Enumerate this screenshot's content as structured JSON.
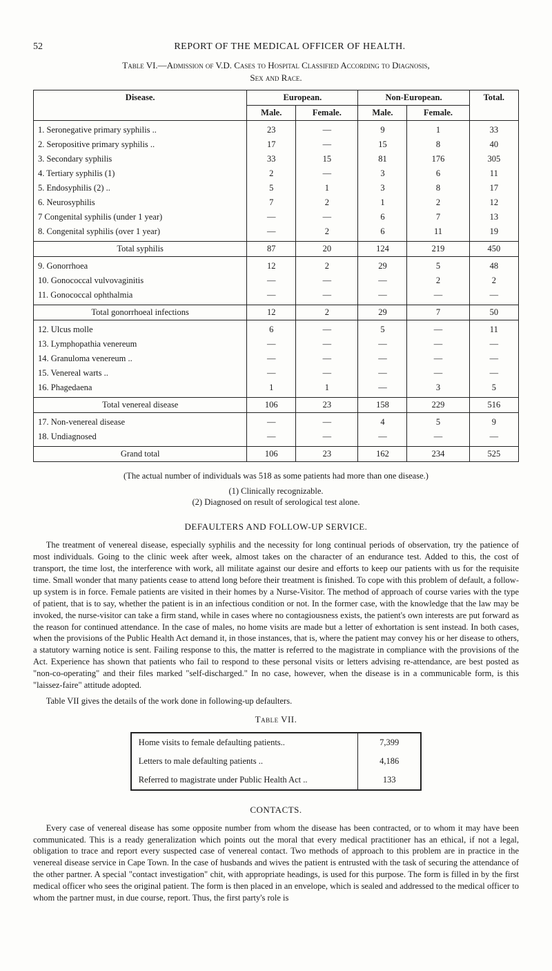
{
  "page_number": "52",
  "running_head": "REPORT OF THE MEDICAL OFFICER OF HEALTH.",
  "table6": {
    "caption_line1": "Table VI.—Admission of V.D. Cases to Hospital Classified According to Diagnosis,",
    "caption_line2": "Sex and Race.",
    "head_disease": "Disease.",
    "head_european": "European.",
    "head_noneuropean": "Non-European.",
    "head_total": "Total.",
    "head_male": "Male.",
    "head_female": "Female.",
    "group1": [
      {
        "label": "1. Seronegative primary syphilis ..",
        "em": "23",
        "ef": "—",
        "nm": "9",
        "nf": "1",
        "t": "33"
      },
      {
        "label": "2. Seropositive primary syphilis ..",
        "em": "17",
        "ef": "—",
        "nm": "15",
        "nf": "8",
        "t": "40"
      },
      {
        "label": "3. Secondary syphilis",
        "em": "33",
        "ef": "15",
        "nm": "81",
        "nf": "176",
        "t": "305"
      },
      {
        "label": "4. Tertiary syphilis (1)",
        "em": "2",
        "ef": "—",
        "nm": "3",
        "nf": "6",
        "t": "11"
      },
      {
        "label": "5. Endosyphilis (2) ..",
        "em": "5",
        "ef": "1",
        "nm": "3",
        "nf": "8",
        "t": "17"
      },
      {
        "label": "6. Neurosyphilis",
        "em": "7",
        "ef": "2",
        "nm": "1",
        "nf": "2",
        "t": "12"
      },
      {
        "label": "7 Congenital syphilis (under 1 year)",
        "em": "—",
        "ef": "—",
        "nm": "6",
        "nf": "7",
        "t": "13"
      },
      {
        "label": "8. Congenital syphilis (over 1 year)",
        "em": "—",
        "ef": "2",
        "nm": "6",
        "nf": "11",
        "t": "19"
      }
    ],
    "sub1": {
      "label": "Total syphilis",
      "em": "87",
      "ef": "20",
      "nm": "124",
      "nf": "219",
      "t": "450"
    },
    "group2": [
      {
        "label": "9. Gonorrhoea",
        "em": "12",
        "ef": "2",
        "nm": "29",
        "nf": "5",
        "t": "48"
      },
      {
        "label": "10. Gonococcal vulvovaginitis",
        "em": "—",
        "ef": "—",
        "nm": "—",
        "nf": "2",
        "t": "2"
      },
      {
        "label": "11. Gonococcal ophthalmia",
        "em": "—",
        "ef": "—",
        "nm": "—",
        "nf": "—",
        "t": "—"
      }
    ],
    "sub2": {
      "label": "Total gonorrhoeal infections",
      "em": "12",
      "ef": "2",
      "nm": "29",
      "nf": "7",
      "t": "50"
    },
    "group3": [
      {
        "label": "12. Ulcus molle",
        "em": "6",
        "ef": "—",
        "nm": "5",
        "nf": "—",
        "t": "11"
      },
      {
        "label": "13. Lymphopathia venereum",
        "em": "—",
        "ef": "—",
        "nm": "—",
        "nf": "—",
        "t": "—"
      },
      {
        "label": "14. Granuloma venereum ..",
        "em": "—",
        "ef": "—",
        "nm": "—",
        "nf": "—",
        "t": "—"
      },
      {
        "label": "15. Venereal warts ..",
        "em": "—",
        "ef": "—",
        "nm": "—",
        "nf": "—",
        "t": "—"
      },
      {
        "label": "16. Phagedaena",
        "em": "1",
        "ef": "1",
        "nm": "—",
        "nf": "3",
        "t": "5"
      }
    ],
    "sub3": {
      "label": "Total venereal disease",
      "em": "106",
      "ef": "23",
      "nm": "158",
      "nf": "229",
      "t": "516"
    },
    "group4": [
      {
        "label": "17. Non-venereal disease",
        "em": "—",
        "ef": "—",
        "nm": "4",
        "nf": "5",
        "t": "9"
      },
      {
        "label": "18. Undiagnosed",
        "em": "—",
        "ef": "—",
        "nm": "—",
        "nf": "—",
        "t": "—"
      }
    ],
    "grand": {
      "label": "Grand total",
      "em": "106",
      "ef": "23",
      "nm": "162",
      "nf": "234",
      "t": "525"
    }
  },
  "footnote_main": "(The actual number of individuals was 518 as some patients had more than one disease.)",
  "footnote_1": "(1) Clinically recognizable.",
  "footnote_2": "(2) Diagnosed on result of serological test alone.",
  "defaulters_head": "DEFAULTERS AND FOLLOW-UP SERVICE.",
  "defaulters_para": "The treatment of venereal disease, especially syphilis and the necessity for long continual periods of observation, try the patience of most individuals. Going to the clinic week after week, almost takes on the character of an endurance test. Added to this, the cost of transport, the time lost, the interference with work, all militate against our desire and efforts to keep our patients with us for the requisite time. Small wonder that many patients cease to attend long before their treatment is finished. To cope with this problem of default, a follow-up system is in force. Female patients are visited in their homes by a Nurse-Visitor. The method of approach of course varies with the type of patient, that is to say, whether the patient is in an infectious condition or not. In the former case, with the knowledge that the law may be invoked, the nurse-visitor can take a firm stand, while in cases where no contagiousness exists, the patient's own interests are put forward as the reason for continued attendance. In the case of males, no home visits are made but a letter of exhortation is sent instead. In both cases, when the provisions of the Public Health Act demand it, in those instances, that is, where the patient may convey his or her disease to others, a statutory warning notice is sent. Failing response to this, the matter is referred to the magistrate in compliance with the provisions of the Act. Experience has shown that patients who fail to respond to these personal visits or letters advising re-attendance, are best posted as \"non-co-operating\" and their files marked \"self-discharged.\" In no case, however, when the disease is in a communicable form, is this \"laissez-faire\" attitude adopted.",
  "table7_intro": "Table VII gives the details of the work done in following-up defaulters.",
  "table7_caption": "Table VII.",
  "table7": [
    {
      "label": "Home visits to female defaulting patients..",
      "v": "7,399"
    },
    {
      "label": "Letters to male defaulting patients ..",
      "v": "4,186"
    },
    {
      "label": "Referred to magistrate under Public Health Act ..",
      "v": "133"
    }
  ],
  "contacts_head": "CONTACTS.",
  "contacts_para": "Every case of venereal disease has some opposite number from whom the disease has been contracted, or to whom it may have been communicated. This is a ready generalization which points out the moral that every medical practitioner has an ethical, if not a legal, obligation to trace and report every suspected case of venereal contact. Two methods of approach to this problem are in practice in the venereal disease service in Cape Town. In the case of husbands and wives the patient is entrusted with the task of securing the attendance of the other partner. A special \"contact investigation\" chit, with appropriate headings, is used for this purpose. The form is filled in by the first medical officer who sees the original patient. The form is then placed in an envelope, which is sealed and addressed to the medical officer to whom the partner must, in due course, report. Thus, the first party's role is"
}
